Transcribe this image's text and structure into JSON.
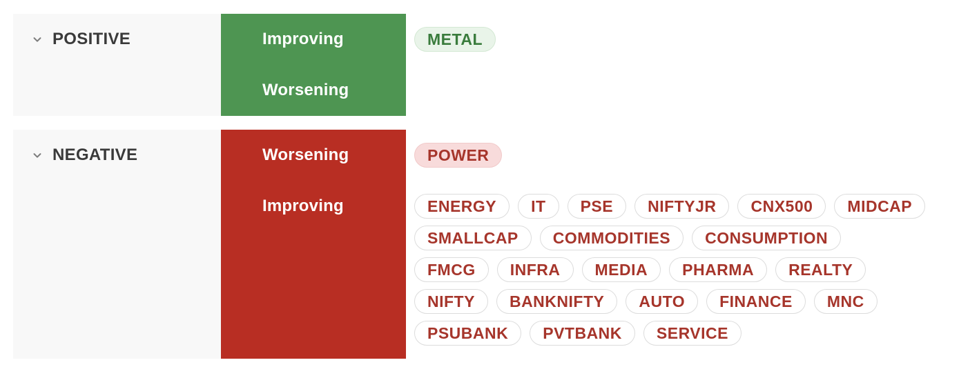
{
  "colors": {
    "positive_block": "#4e9552",
    "negative_block": "#b82e23",
    "panel_bg": "#f8f8f8",
    "section_label_text": "#3a3a3a",
    "chevron": "#7d7d7d",
    "trend_label_text": "#ffffff",
    "tag_green_bg": "#e9f4e9",
    "tag_green_border": "#d3e8d3",
    "tag_green_text": "#3a7c3d",
    "tag_pink_bg": "#f8dbdb",
    "tag_pink_border": "#f1c9c9",
    "tag_red_text": "#a6352b",
    "tag_outline_border": "#dcdcdc",
    "tag_outline_bg": "#ffffff"
  },
  "icons": {
    "section_collapse": "chevron-down"
  },
  "sections": [
    {
      "id": "positive",
      "label": "POSITIVE",
      "rows": [
        {
          "label": "Improving",
          "tag_style": "solid-green",
          "tag_lines": [
            [
              "METAL"
            ]
          ]
        },
        {
          "label": "Worsening",
          "tag_style": "solid-green",
          "tag_lines": []
        }
      ]
    },
    {
      "id": "negative",
      "label": "NEGATIVE",
      "rows": [
        {
          "label": "Worsening",
          "tag_style": "solid-pink",
          "tag_lines": [
            [
              "POWER"
            ]
          ]
        },
        {
          "label": "Improving",
          "tag_style": "outline-red",
          "tag_lines": [
            [
              "ENERGY",
              "IT",
              "PSE",
              "NIFTYJR",
              "CNX500",
              "MIDCAP"
            ],
            [
              "SMALLCAP",
              "COMMODITIES",
              "CONSUMPTION"
            ],
            [
              "FMCG",
              "INFRA",
              "MEDIA",
              "PHARMA",
              "REALTY"
            ],
            [
              "NIFTY",
              "BANKNIFTY",
              "AUTO",
              "FINANCE",
              "MNC"
            ],
            [
              "PSUBANK",
              "PVTBANK",
              "SERVICE"
            ]
          ]
        }
      ]
    }
  ]
}
